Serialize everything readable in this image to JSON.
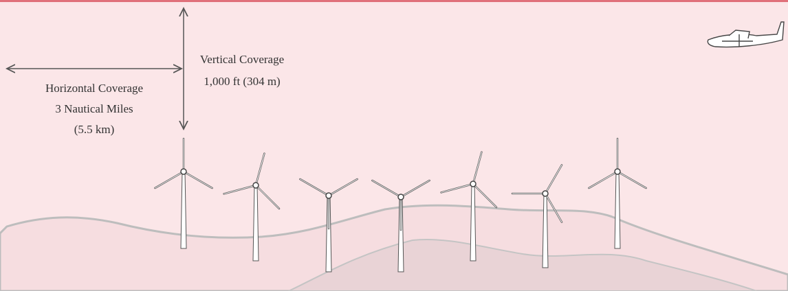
{
  "horizontal_coverage": {
    "title": "Horizontal Coverage",
    "distance": "3 Nautical Miles",
    "metric": "(5.5 km)"
  },
  "vertical_coverage": {
    "title": "Vertical Coverage",
    "height": "1,000 ft (304 m)"
  }
}
